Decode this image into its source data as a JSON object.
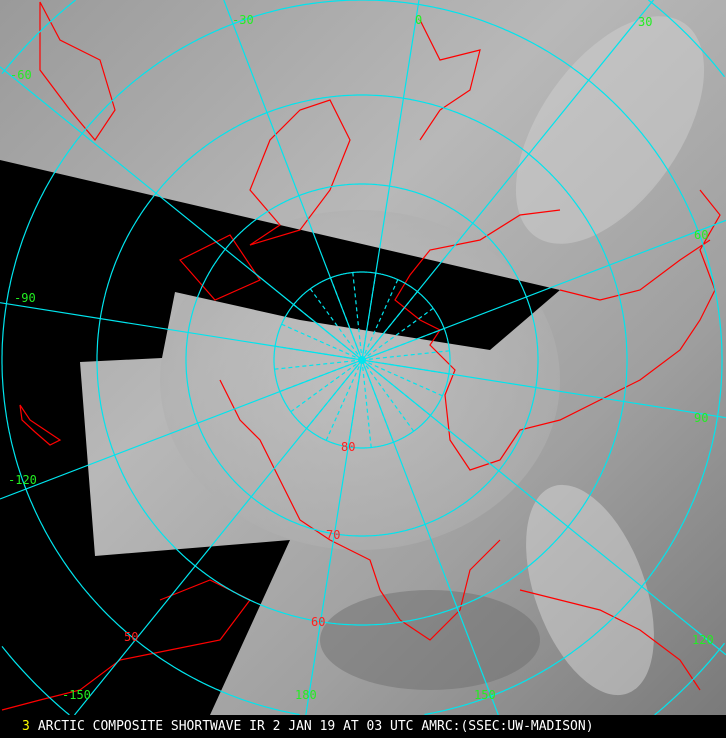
{
  "caption": {
    "frame_number": "3",
    "title": "ARCTIC COMPOSITE SHORTWAVE IR 2 JAN 19 AT 03 UTC AMRC:(SSEC:UW-MADISON)"
  },
  "colors": {
    "graticule": "#00e5ee",
    "coastline": "#ff0000",
    "longitude_labels": "#22ee22",
    "latitude_labels": "#ff2020",
    "frame_number": "#ffff00",
    "no_data": "#000000"
  },
  "graticule": {
    "longitude_labels": [
      "-30",
      "0",
      "30",
      "-60",
      "60",
      "90",
      "120",
      "150",
      "180",
      "-150",
      "-120",
      "-90"
    ],
    "latitude_labels": [
      "80",
      "70",
      "60",
      "50"
    ]
  }
}
